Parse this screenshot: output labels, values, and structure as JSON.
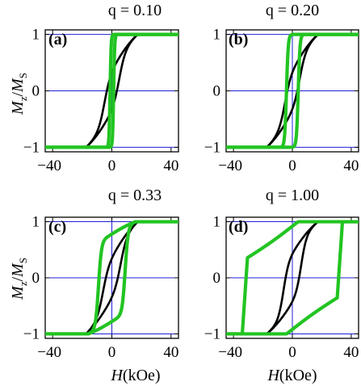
{
  "figure": {
    "ylabel": "Mz/MS",
    "xlabel": "H(kOe)"
  },
  "colors": {
    "hysteresis_loop_a": "#000000",
    "hysteresis_loop_b": "#22c422",
    "reference_lines": "#1f1fd6"
  },
  "chart_data": [
    {
      "type": "line",
      "panel_label": "(a)",
      "title": "q = 0.10",
      "xlim": [
        -45,
        45
      ],
      "ylim": [
        -1.08,
        1.08
      ],
      "xticks": [
        "-40",
        "0",
        "40"
      ],
      "yticks": [
        "-1",
        "0",
        "1"
      ],
      "grid": false,
      "legend": "none",
      "reference_lines": {
        "x": [
          0
        ],
        "y": [
          -1,
          0,
          1
        ]
      },
      "series": [
        {
          "color": "black",
          "loop": {
            "Hc": 5,
            "shape": "tanh",
            "w": 4,
            "slope": 0.009,
            "jump": 0.38
          }
        },
        {
          "color": "green",
          "loop": {
            "Hc": 1.2,
            "shape": "tanh",
            "w": 0.7,
            "slope": 0,
            "jump": 1.0
          }
        }
      ]
    },
    {
      "type": "line",
      "panel_label": "(b)",
      "title": "q = 0.20",
      "xlim": [
        -45,
        45
      ],
      "ylim": [
        -1.08,
        1.08
      ],
      "xticks": [
        "-40",
        "0",
        "40"
      ],
      "yticks": [
        "-1",
        "0",
        "1"
      ],
      "grid": false,
      "legend": "none",
      "reference_lines": {
        "x": [
          0
        ],
        "y": [
          -1,
          0,
          1
        ]
      },
      "series": [
        {
          "color": "black",
          "loop": {
            "Hc": 5,
            "shape": "tanh",
            "w": 4,
            "slope": 0.009,
            "jump": 0.38
          }
        },
        {
          "color": "green",
          "loop": {
            "Hc": 4,
            "shape": "tanh",
            "w": 1.2,
            "slope": 0,
            "jump": 1.0
          }
        }
      ]
    },
    {
      "type": "line",
      "panel_label": "(c)",
      "title": "q = 0.33",
      "xlim": [
        -45,
        45
      ],
      "ylim": [
        -1.08,
        1.08
      ],
      "xticks": [
        "-40",
        "0",
        "40"
      ],
      "yticks": [
        "-1",
        "0",
        "1"
      ],
      "grid": false,
      "legend": "none",
      "reference_lines": {
        "x": [
          0
        ],
        "y": [
          -1,
          0,
          1
        ]
      },
      "series": [
        {
          "color": "black",
          "loop": {
            "Hc": 6,
            "shape": "tanh",
            "w": 4,
            "slope": 0.009,
            "jump": 0.38
          }
        },
        {
          "color": "green",
          "loop": {
            "Hc": 9,
            "shape": "tanh",
            "w": 2,
            "slope": 0.004,
            "jump": 0.78
          }
        }
      ]
    },
    {
      "type": "line",
      "panel_label": "(d)",
      "title": "q = 1.00",
      "xlim": [
        -45,
        45
      ],
      "ylim": [
        -1.08,
        1.08
      ],
      "xticks": [
        "-40",
        "0",
        "40"
      ],
      "yticks": [
        "-1",
        "0",
        "1"
      ],
      "grid": false,
      "legend": "none",
      "reference_lines": {
        "x": [
          0
        ],
        "y": [
          -1,
          0,
          1
        ]
      },
      "series": [
        {
          "color": "black",
          "loop": {
            "Hc": 6,
            "shape": "tanh",
            "w": 3.5,
            "slope": 0.008,
            "jump": 0.45
          }
        },
        {
          "color": "green",
          "loop": {
            "Hc": 33,
            "shape": "linear",
            "w": 2.5,
            "slope": 0.016,
            "jump": 0.92
          }
        }
      ]
    }
  ]
}
